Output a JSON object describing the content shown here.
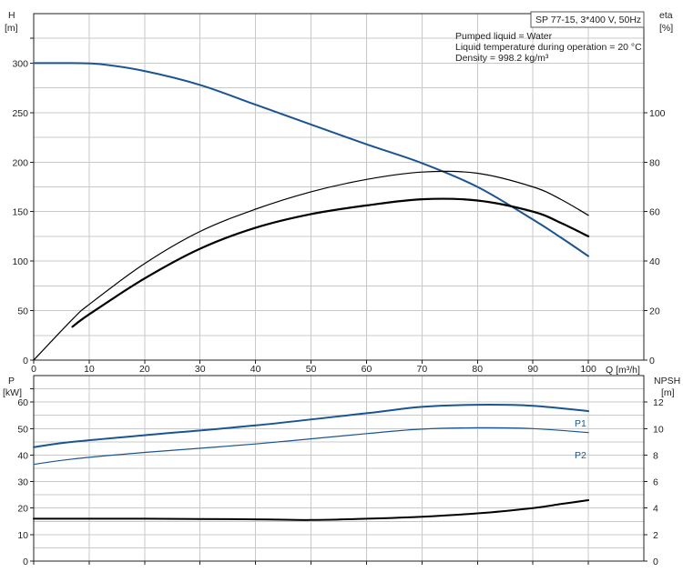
{
  "info": {
    "model": "SP 77-15, 3*400 V, 50Hz",
    "liquid": "Pumped liquid = Water",
    "temperature": "Liquid temperature during operation = 20 °C",
    "density": "Density = 998.2 kg/m³"
  },
  "colors": {
    "blue": "#1a5592",
    "black": "#000000",
    "grid": "#c8c8c8"
  },
  "chart_data": [
    {
      "type": "line",
      "title": "",
      "xlabel": "Q [m³/h]",
      "ylabel_left": [
        "H",
        "[m]"
      ],
      "ylabel_right": [
        "eta",
        "[%]"
      ],
      "xlim": [
        0,
        110
      ],
      "ylim_left": [
        0,
        350
      ],
      "ylim_right": [
        0,
        140
      ],
      "x_ticks": [
        "0",
        "10",
        "20",
        "30",
        "40",
        "50",
        "60",
        "70",
        "80",
        "90",
        "100"
      ],
      "left_ticks": [
        "0",
        "50",
        "100",
        "150",
        "200",
        "250",
        "300"
      ],
      "left_tick_values": [
        0,
        50,
        100,
        150,
        200,
        250,
        300
      ],
      "right_ticks": [
        "0",
        "20",
        "40",
        "60",
        "80",
        "100"
      ],
      "right_tick_values": [
        0,
        20,
        40,
        60,
        80,
        100
      ],
      "grid": true,
      "series": [
        {
          "key": "H",
          "axis": "left",
          "color": "#1a5592",
          "width": 2,
          "x": [
            0,
            7,
            12,
            20,
            30,
            40,
            50,
            60,
            70,
            80,
            90,
            95,
            100
          ],
          "y": [
            300,
            300,
            299,
            292,
            278,
            258,
            238,
            218,
            199,
            175,
            142,
            124,
            105
          ]
        },
        {
          "key": "eta_thin",
          "axis": "right",
          "color": "#000000",
          "width": 1.2,
          "x": [
            0,
            7,
            10,
            20,
            30,
            40,
            50,
            60,
            70,
            80,
            90,
            95,
            100
          ],
          "y": [
            0,
            16.5,
            22.5,
            39,
            52,
            61,
            68,
            73,
            76,
            75.5,
            70,
            65,
            58.5
          ]
        },
        {
          "key": "eta_thick",
          "axis": "right",
          "color": "#000000",
          "width": 2.2,
          "x": [
            7,
            10,
            20,
            30,
            40,
            50,
            60,
            70,
            80,
            90,
            95,
            100
          ],
          "y": [
            13.5,
            18.5,
            33,
            45,
            53.5,
            59,
            62.5,
            65,
            64.5,
            60,
            55.5,
            50
          ]
        }
      ]
    },
    {
      "type": "line",
      "title": "",
      "xlabel": "",
      "ylabel_left": [
        "P",
        "[kW]"
      ],
      "ylabel_right": [
        "NPSH",
        "[m]"
      ],
      "xlim": [
        0,
        110
      ],
      "ylim_left": [
        0,
        70
      ],
      "ylim_right": [
        0,
        14
      ],
      "left_ticks": [
        "0",
        "10",
        "20",
        "30",
        "40",
        "50",
        "60"
      ],
      "left_tick_values": [
        0,
        10,
        20,
        30,
        40,
        50,
        60
      ],
      "right_ticks": [
        "0",
        "2",
        "4",
        "6",
        "8",
        "10",
        "12"
      ],
      "right_tick_values": [
        0,
        2,
        4,
        6,
        8,
        10,
        12
      ],
      "grid": true,
      "series": [
        {
          "key": "P1",
          "name": "P1",
          "axis": "left",
          "color": "#1a5592",
          "width": 2,
          "x": [
            0,
            7,
            20,
            40,
            60,
            70,
            80,
            90,
            100
          ],
          "y": [
            43,
            45,
            47.5,
            51.2,
            55.8,
            58.2,
            59,
            58.6,
            56.6
          ]
        },
        {
          "key": "P2",
          "name": "P2",
          "axis": "left",
          "color": "#1a5592",
          "width": 1.2,
          "x": [
            0,
            7,
            20,
            40,
            60,
            70,
            80,
            90,
            100
          ],
          "y": [
            36.5,
            38.5,
            41,
            44.2,
            48.1,
            49.8,
            50.3,
            50,
            48.5
          ]
        },
        {
          "key": "NPSH",
          "axis": "right",
          "color": "#000000",
          "width": 2,
          "x": [
            0,
            7,
            20,
            40,
            50,
            60,
            70,
            80,
            90,
            95,
            100
          ],
          "y": [
            3.2,
            3.2,
            3.2,
            3.15,
            3.1,
            3.2,
            3.35,
            3.6,
            4.0,
            4.3,
            4.6
          ]
        }
      ]
    }
  ]
}
